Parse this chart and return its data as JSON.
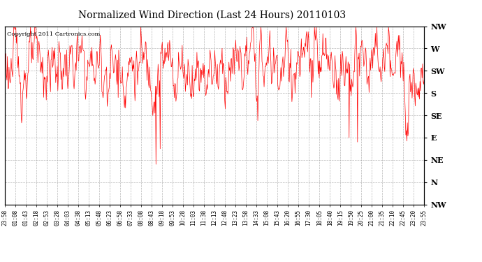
{
  "title": "Normalized Wind Direction (Last 24 Hours) 20110103",
  "copyright_text": "Copyright 2011 Cartronics.com",
  "line_color": "#ff0000",
  "background_color": "#ffffff",
  "grid_color": "#999999",
  "ytick_labels": [
    "NW",
    "W",
    "SW",
    "S",
    "SE",
    "E",
    "NE",
    "N",
    "NW"
  ],
  "ytick_values": [
    8,
    7,
    6,
    5,
    4,
    3,
    2,
    1,
    0
  ],
  "ylim": [
    0,
    8
  ],
  "xtick_labels": [
    "23:58",
    "01:08",
    "01:43",
    "02:18",
    "02:53",
    "03:28",
    "04:03",
    "04:38",
    "05:13",
    "05:48",
    "06:23",
    "06:58",
    "07:33",
    "08:08",
    "08:43",
    "09:18",
    "09:53",
    "10:28",
    "11:03",
    "11:38",
    "12:13",
    "12:48",
    "13:23",
    "13:58",
    "14:33",
    "15:08",
    "15:43",
    "16:20",
    "16:55",
    "17:30",
    "18:05",
    "18:40",
    "19:15",
    "19:50",
    "20:25",
    "21:00",
    "21:35",
    "22:10",
    "22:45",
    "23:20",
    "23:55"
  ],
  "seed": 123,
  "n_points": 800,
  "base_value": 6.2,
  "noise_scale": 0.55,
  "alpha": 0.75
}
